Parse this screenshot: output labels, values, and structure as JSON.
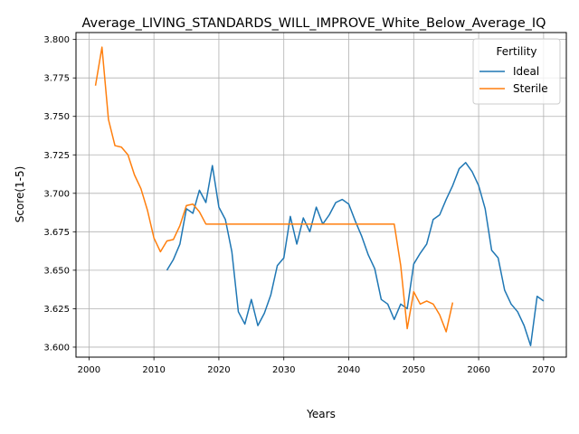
{
  "chart_data": {
    "type": "line",
    "title": "Average_LIVING_STANDARDS_WILL_IMPROVE_White_Below_Average_IQ",
    "xlabel": "Years",
    "ylabel": "Score(1-5)",
    "xlim": [
      1998,
      2073.5
    ],
    "ylim": [
      3.5935,
      3.8045
    ],
    "xticks": [
      "2000",
      "2010",
      "2020",
      "2030",
      "2040",
      "2050",
      "2060",
      "2070"
    ],
    "yticks": [
      "3.600",
      "3.625",
      "3.650",
      "3.675",
      "3.700",
      "3.725",
      "3.750",
      "3.775",
      "3.800"
    ],
    "grid": true,
    "legend": {
      "title": "Fertility",
      "position": "top-right"
    },
    "series": [
      {
        "name": "Ideal",
        "color": "#1f77b4",
        "x": [
          2012,
          2013,
          2014,
          2015,
          2016,
          2017,
          2018,
          2019,
          2020,
          2021,
          2022,
          2023,
          2024,
          2025,
          2026,
          2027,
          2028,
          2029,
          2030,
          2031,
          2032,
          2033,
          2034,
          2035,
          2036,
          2037,
          2038,
          2039,
          2040,
          2041,
          2042,
          2043,
          2044,
          2045,
          2046,
          2047,
          2048,
          2049,
          2050,
          2051,
          2052,
          2053,
          2054,
          2055,
          2056,
          2057,
          2058,
          2059,
          2060,
          2061,
          2062,
          2063,
          2064,
          2065,
          2066,
          2067,
          2068,
          2069,
          2070
        ],
        "values": [
          3.65,
          3.657,
          3.667,
          3.69,
          3.687,
          3.702,
          3.694,
          3.718,
          3.691,
          3.683,
          3.662,
          3.623,
          3.615,
          3.631,
          3.614,
          3.622,
          3.634,
          3.653,
          3.658,
          3.685,
          3.667,
          3.684,
          3.675,
          3.691,
          3.68,
          3.686,
          3.694,
          3.696,
          3.693,
          3.682,
          3.672,
          3.66,
          3.651,
          3.631,
          3.628,
          3.618,
          3.628,
          3.625,
          3.654,
          3.661,
          3.667,
          3.683,
          3.686,
          3.696,
          3.705,
          3.716,
          3.72,
          3.714,
          3.705,
          3.69,
          3.663,
          3.658,
          3.637,
          3.628,
          3.623,
          3.614,
          3.601,
          3.633,
          3.63
        ]
      },
      {
        "name": "Sterile",
        "color": "#ff7f0e",
        "x": [
          2001,
          2002,
          2003,
          2004,
          2005,
          2006,
          2007,
          2008,
          2009,
          2010,
          2011,
          2012,
          2013,
          2014,
          2015,
          2016,
          2017,
          2018,
          2019,
          2020,
          2021,
          2022,
          2023,
          2024,
          2025,
          2026,
          2027,
          2028,
          2029,
          2030,
          2031,
          2032,
          2033,
          2034,
          2035,
          2036,
          2037,
          2038,
          2039,
          2040,
          2041,
          2042,
          2043,
          2044,
          2045,
          2046,
          2047,
          2048,
          2049,
          2050,
          2051,
          2052,
          2053,
          2054,
          2055,
          2056
        ],
        "values": [
          3.77,
          3.795,
          3.748,
          3.731,
          3.73,
          3.725,
          3.712,
          3.703,
          3.689,
          3.671,
          3.662,
          3.669,
          3.67,
          3.679,
          3.692,
          3.693,
          3.688,
          3.68,
          3.68,
          3.68,
          3.68,
          3.68,
          3.68,
          3.68,
          3.68,
          3.68,
          3.68,
          3.68,
          3.68,
          3.68,
          3.68,
          3.68,
          3.68,
          3.68,
          3.68,
          3.68,
          3.68,
          3.68,
          3.68,
          3.68,
          3.68,
          3.68,
          3.68,
          3.68,
          3.68,
          3.68,
          3.68,
          3.653,
          3.612,
          3.636,
          3.628,
          3.63,
          3.628,
          3.621,
          3.61,
          3.629
        ]
      }
    ]
  }
}
